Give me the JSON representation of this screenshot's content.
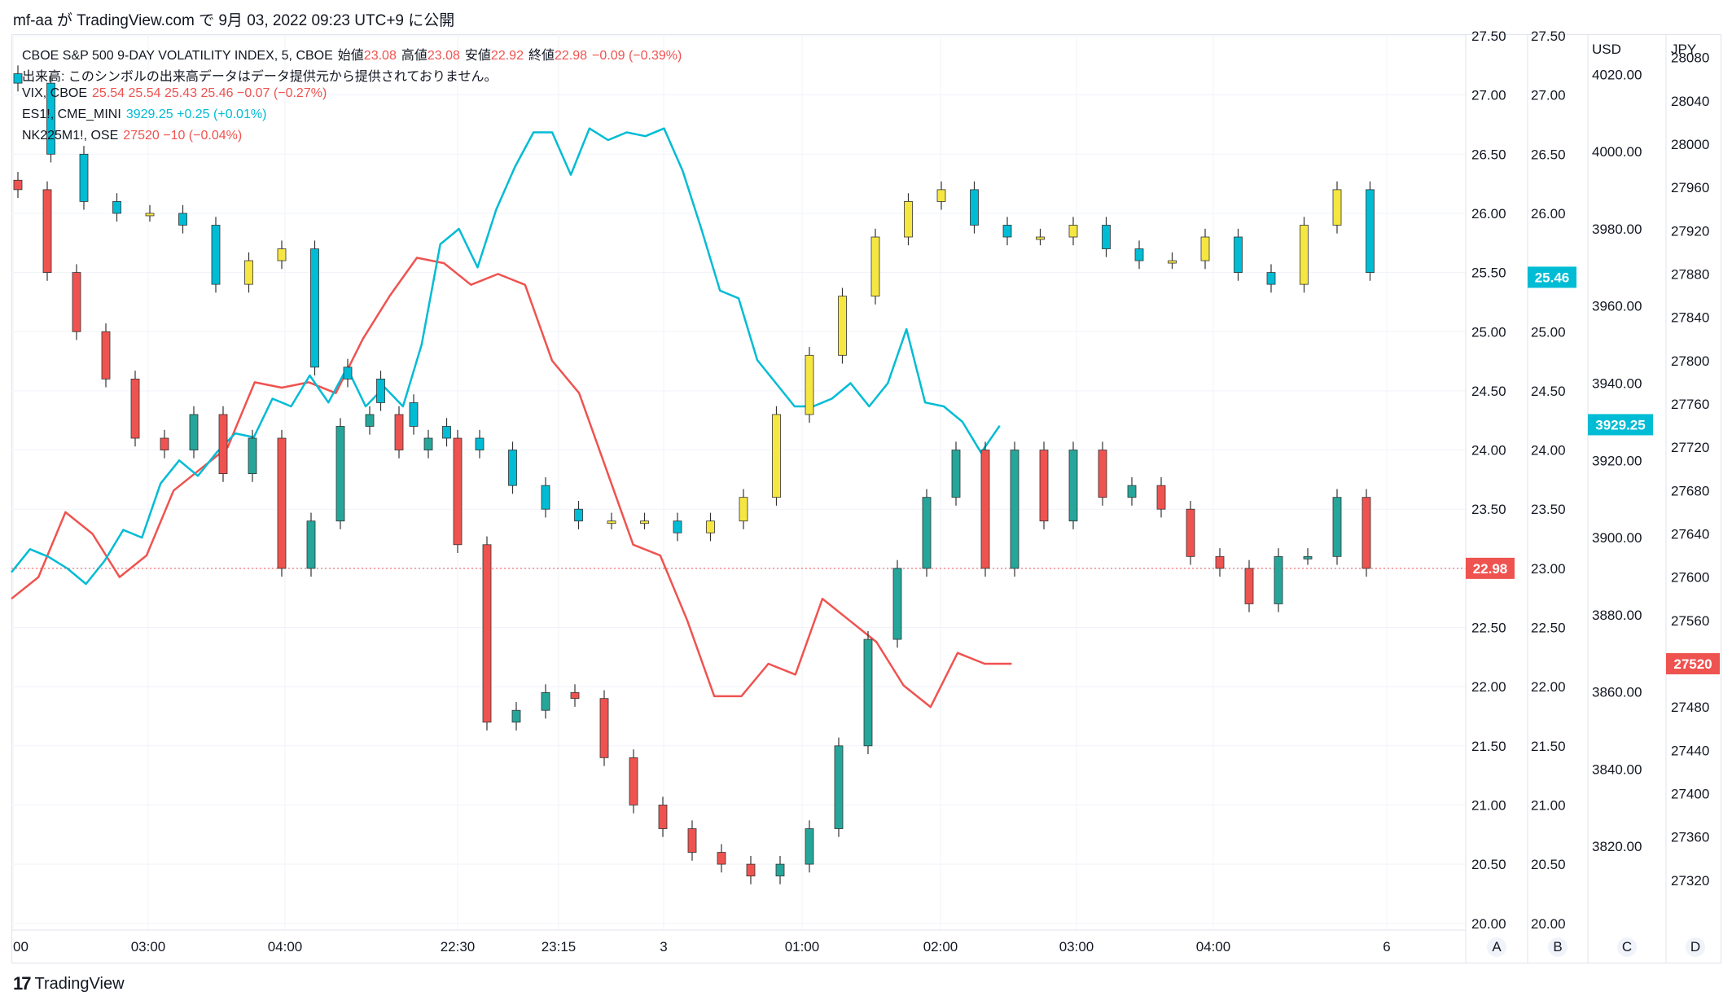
{
  "header": {
    "publish_text": "mf-aa が TradingView.com で 9月 03, 2022 09:23 UTC+9 に公開"
  },
  "footer": {
    "brand": "TradingView",
    "logo_glyph": "17"
  },
  "legend": {
    "main": {
      "symbol": "CBOE S&P 500 9-DAY VOLATILITY INDEX, 5, CBOE",
      "o_label": "始値",
      "o": "23.08",
      "h_label": "高値",
      "h": "23.08",
      "l_label": "安値",
      "l": "22.92",
      "c_label": "終値",
      "c": "22.98",
      "change": "−0.09 (−0.39%)"
    },
    "volume_note": "出来高: このシンボルの出来高データはデータ提供元から提供されておりません。",
    "vix": {
      "symbol": "VIX, CBOE",
      "values": "25.54  25.54  25.43  25.46  −0.07 (−0.27%)"
    },
    "es": {
      "symbol": "ES1!, CME_MINI",
      "values": "3929.25  +0.25 (+0.01%)"
    },
    "nk": {
      "symbol": "NK225M1!, OSE",
      "values": "27520  −10 (−0.04%)"
    }
  },
  "colors": {
    "up": "#26a69a",
    "down": "#ef5350",
    "vix_up": "#f5e642",
    "vix_down": "#00bcd4",
    "es_line": "#00bcd4",
    "nk_line": "#ef5350",
    "grid": "#f0f3fa",
    "axis_text": "#131722"
  },
  "chart_data": {
    "type": "candlestick+line",
    "x_ticks": [
      "00",
      "03:00",
      "04:00",
      "22:30",
      "23:15",
      "3",
      "01:00",
      "02:00",
      "03:00",
      "04:00",
      "6"
    ],
    "axes": {
      "A": {
        "label": "A",
        "min": 20.0,
        "max": 27.5,
        "ticks": [
          "27.50",
          "27.00",
          "26.50",
          "26.00",
          "25.50",
          "25.00",
          "24.50",
          "24.00",
          "23.50",
          "23.00",
          "22.50",
          "22.00",
          "21.50",
          "21.00",
          "20.50",
          "20.00"
        ],
        "last_value": "22.98"
      },
      "B": {
        "label": "B",
        "min": 20.0,
        "max": 27.5,
        "ticks": [
          "27.50",
          "27.00",
          "26.50",
          "26.00",
          "25.50",
          "25.00",
          "24.50",
          "24.00",
          "23.50",
          "23.00",
          "22.50",
          "22.00",
          "21.50",
          "21.00",
          "20.50",
          "20.00"
        ],
        "last_value": "25.46"
      },
      "C": {
        "label": "C",
        "unit": "USD",
        "min": 3800,
        "max": 4030,
        "ticks": [
          "4020.00",
          "4000.00",
          "3980.00",
          "3960.00",
          "3940.00",
          "3920.00",
          "3900.00",
          "3880.00",
          "3860.00",
          "3840.00",
          "3820.00"
        ],
        "last_value": "3929.25"
      },
      "D": {
        "label": "D",
        "unit": "JPY",
        "min": 27280,
        "max": 28100,
        "ticks": [
          "28080",
          "28040",
          "28000",
          "27960",
          "27920",
          "27880",
          "27840",
          "27800",
          "27760",
          "27720",
          "27680",
          "27640",
          "27600",
          "27560",
          "27520",
          "27480",
          "27440",
          "27400",
          "27360",
          "27320"
        ],
        "last_value": "27520"
      }
    },
    "vix9d_close": [
      26.2,
      25.5,
      25.0,
      24.6,
      24.1,
      24.0,
      24.3,
      23.8,
      24.1,
      23.0,
      23.4,
      24.2,
      24.3,
      24.0,
      24.1,
      23.2,
      21.7,
      21.8,
      21.95,
      21.9,
      21.4,
      21.0,
      20.8,
      20.6,
      20.5,
      20.4,
      20.5,
      20.8,
      21.5,
      22.4,
      23.0,
      23.6,
      24.0,
      23.0,
      24.0,
      23.4,
      24.0,
      23.6,
      23.7,
      23.5,
      23.1,
      23.0,
      22.7,
      23.1,
      23.1,
      23.6,
      23.0
    ],
    "vix_close": [
      27.1,
      26.5,
      26.1,
      26.0,
      26.0,
      25.9,
      25.4,
      25.6,
      25.7,
      24.7,
      24.6,
      24.4,
      24.2,
      24.1,
      24.0,
      23.7,
      23.5,
      23.4,
      23.4,
      23.4,
      23.3,
      23.4,
      23.6,
      24.3,
      24.8,
      25.3,
      25.8,
      26.1,
      26.2,
      25.9,
      25.8,
      25.8,
      25.9,
      25.7,
      25.6,
      25.6,
      25.8,
      25.5,
      25.4,
      25.9,
      26.2,
      25.5
    ],
    "es_close": [
      3891,
      3897,
      3895,
      3892,
      3888,
      3894,
      3902,
      3900,
      3914,
      3920,
      3916,
      3922,
      3927,
      3926,
      3936,
      3934,
      3942,
      3935,
      3944,
      3934,
      3939,
      3934,
      3950,
      3976,
      3980,
      3970,
      3985,
      3996,
      4005,
      4005,
      3994,
      4006,
      4003,
      4005,
      4004,
      4006,
      3995,
      3980,
      3964,
      3962,
      3946,
      3940,
      3934,
      3934,
      3936,
      3940,
      3934,
      3940,
      3954,
      3935,
      3934,
      3930,
      3922,
      3929
    ],
    "nk_close": [
      27580,
      27600,
      27660,
      27640,
      27600,
      27620,
      27680,
      27700,
      27720,
      27780,
      27775,
      27780,
      27770,
      27820,
      27860,
      27895,
      27890,
      27870,
      27880,
      27870,
      27800,
      27770,
      27700,
      27630,
      27620,
      27560,
      27490,
      27490,
      27520,
      27510,
      27580,
      27560,
      27540,
      27500,
      27480,
      27530,
      27520,
      27520
    ]
  }
}
